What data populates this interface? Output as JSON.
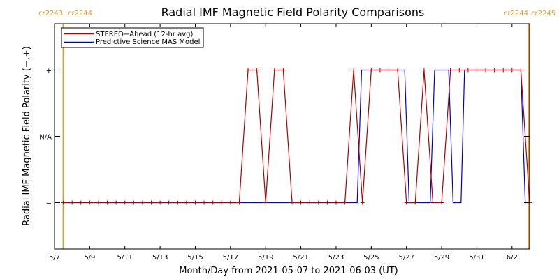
{
  "chart_data": {
    "type": "line",
    "title": "Radial IMF Magnetic Field Polarity Comparisons",
    "xlabel": "Month/Day from 2021-05-07 to 2021-06-03 (UT)",
    "ylabel": "Radial IMF Magnetic Field Polarity (−,+)",
    "x_unit": "days after 2021-05-07 00:00 UT",
    "xlim": [
      0,
      27
    ],
    "ylim": [
      -1.7,
      1.7
    ],
    "x_ticks": [
      {
        "value": 0,
        "label": "5/7"
      },
      {
        "value": 2,
        "label": "5/9"
      },
      {
        "value": 4,
        "label": "5/11"
      },
      {
        "value": 6,
        "label": "5/13"
      },
      {
        "value": 8,
        "label": "5/15"
      },
      {
        "value": 10,
        "label": "5/17"
      },
      {
        "value": 12,
        "label": "5/19"
      },
      {
        "value": 14,
        "label": "5/21"
      },
      {
        "value": 16,
        "label": "5/23"
      },
      {
        "value": 18,
        "label": "5/25"
      },
      {
        "value": 20,
        "label": "5/27"
      },
      {
        "value": 22,
        "label": "5/29"
      },
      {
        "value": 24,
        "label": "5/31"
      },
      {
        "value": 26,
        "label": "6/2"
      }
    ],
    "y_ticks": [
      {
        "value": 1,
        "label": "+"
      },
      {
        "value": 0,
        "label": "N/A"
      },
      {
        "value": -1,
        "label": "−"
      }
    ],
    "legend_position": "top-left",
    "carrington_markers": [
      {
        "x": 0.5,
        "left": "cr2243",
        "right": "cr2244"
      },
      {
        "x": 26.95,
        "left": "cr2244",
        "right": "cr2245"
      }
    ],
    "series": [
      {
        "name": "STEREO−Ahead (12-hr avg)",
        "color": "#b00000",
        "markers": true,
        "x": [
          0.5,
          1.0,
          1.5,
          2.0,
          2.5,
          3.0,
          3.5,
          4.0,
          4.5,
          5.0,
          5.5,
          6.0,
          6.5,
          7.0,
          7.5,
          8.0,
          8.5,
          9.0,
          9.5,
          10.0,
          10.5,
          11.0,
          11.5,
          12.0,
          12.5,
          13.0,
          13.5,
          14.0,
          14.5,
          15.0,
          15.5,
          16.0,
          16.5,
          17.0,
          17.5,
          18.0,
          18.5,
          19.0,
          19.5,
          20.0,
          20.5,
          21.0,
          21.5,
          22.0,
          22.5,
          23.0,
          23.5,
          24.0,
          24.5,
          25.0,
          25.5,
          26.0,
          26.5,
          27.0
        ],
        "y": [
          -1,
          -1,
          -1,
          -1,
          -1,
          -1,
          -1,
          -1,
          -1,
          -1,
          -1,
          -1,
          -1,
          -1,
          -1,
          -1,
          -1,
          -1,
          -1,
          -1,
          -1,
          1,
          1,
          -1,
          1,
          1,
          -1,
          -1,
          -1,
          -1,
          -1,
          -1,
          -1,
          1,
          -1,
          1,
          1,
          1,
          1,
          -1,
          -1,
          1,
          -1,
          -1,
          1,
          1,
          1,
          1,
          1,
          1,
          1,
          1,
          1,
          -1
        ]
      },
      {
        "name": "Predictive Science MAS Model",
        "color": "#0000cc",
        "markers": false,
        "x": [
          0.5,
          17.2,
          17.45,
          19.9,
          20.15,
          21.35,
          21.6,
          22.4,
          22.65,
          23.1,
          23.3,
          24.1,
          24.35,
          26.5,
          26.75,
          27.0
        ],
        "y": [
          -1,
          -1,
          1,
          1,
          -1,
          -1,
          1,
          1,
          -1,
          -1,
          1,
          1,
          1,
          1,
          -1,
          -1
        ]
      }
    ]
  }
}
